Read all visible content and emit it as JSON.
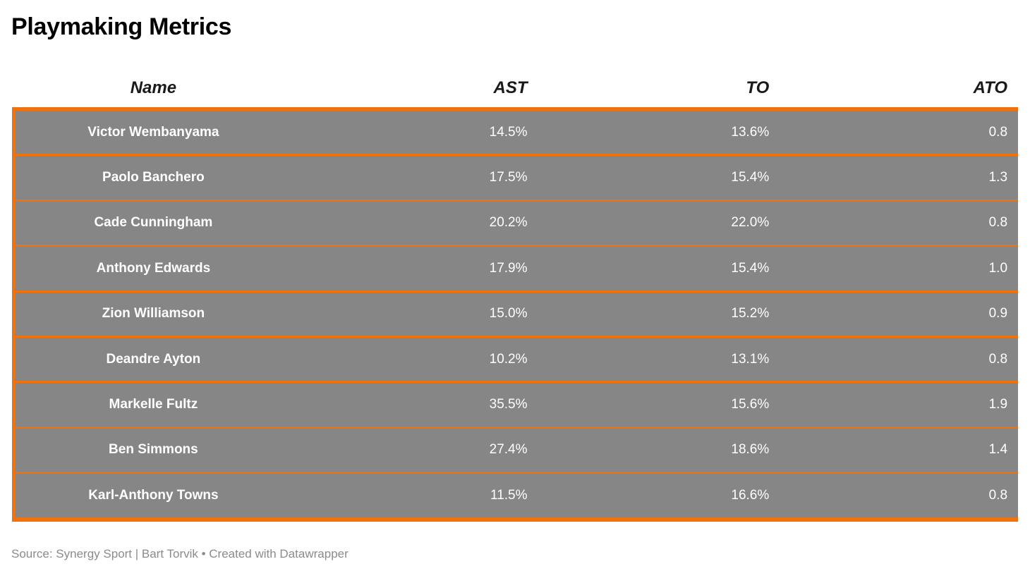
{
  "page": {
    "title": "Playmaking Metrics"
  },
  "colors": {
    "accent_orange": "#F0720C",
    "row_gray": "#868686",
    "row_text_white": "#FFFFFF",
    "header_text_black": "#1A1A1A",
    "footer_gray": "#8B8B8B"
  },
  "table": {
    "headers": {
      "name": "Name",
      "ast": "AST",
      "to": "TO",
      "ato": "ATO"
    },
    "rows": [
      {
        "name": "Victor Wembanyama",
        "ast": "14.5%",
        "to": "13.6%",
        "ato": "0.8"
      },
      {
        "name": "Paolo Banchero",
        "ast": "17.5%",
        "to": "15.4%",
        "ato": "1.3"
      },
      {
        "name": "Cade Cunningham",
        "ast": "20.2%",
        "to": "22.0%",
        "ato": "0.8"
      },
      {
        "name": "Anthony Edwards",
        "ast": "17.9%",
        "to": "15.4%",
        "ato": "1.0"
      },
      {
        "name": "Zion Williamson",
        "ast": "15.0%",
        "to": "15.2%",
        "ato": "0.9"
      },
      {
        "name": "Deandre Ayton",
        "ast": "10.2%",
        "to": "13.1%",
        "ato": "0.8"
      },
      {
        "name": "Markelle Fultz",
        "ast": "35.5%",
        "to": "15.6%",
        "ato": "1.9"
      },
      {
        "name": "Ben Simmons",
        "ast": "27.4%",
        "to": "18.6%",
        "ato": "1.4"
      },
      {
        "name": "Karl-Anthony Towns",
        "ast": "11.5%",
        "to": "16.6%",
        "ato": "0.8"
      }
    ]
  },
  "footer": {
    "source": "Source: Synergy Sport | Bart Torvik • Created with Datawrapper"
  },
  "chart_data": {
    "type": "table",
    "title": "Playmaking Metrics",
    "columns": [
      "Name",
      "AST",
      "TO",
      "ATO"
    ],
    "categories": [
      "Victor Wembanyama",
      "Paolo Banchero",
      "Cade Cunningham",
      "Anthony Edwards",
      "Zion Williamson",
      "Deandre Ayton",
      "Markelle Fultz",
      "Ben Simmons",
      "Karl-Anthony Towns"
    ],
    "series": [
      {
        "name": "AST (%)",
        "values": [
          14.5,
          17.5,
          20.2,
          17.9,
          15.0,
          10.2,
          35.5,
          27.4,
          11.5
        ]
      },
      {
        "name": "TO (%)",
        "values": [
          13.6,
          15.4,
          22.0,
          15.4,
          15.2,
          13.1,
          15.6,
          18.6,
          16.6
        ]
      },
      {
        "name": "ATO",
        "values": [
          0.8,
          1.3,
          0.8,
          1.0,
          0.9,
          0.8,
          1.9,
          1.4,
          0.8
        ]
      }
    ],
    "rows": [
      [
        "Victor Wembanyama",
        "14.5%",
        "13.6%",
        "0.8"
      ],
      [
        "Paolo Banchero",
        "17.5%",
        "15.4%",
        "1.3"
      ],
      [
        "Cade Cunningham",
        "20.2%",
        "22.0%",
        "0.8"
      ],
      [
        "Anthony Edwards",
        "17.9%",
        "15.4%",
        "1.0"
      ],
      [
        "Zion Williamson",
        "15.0%",
        "15.2%",
        "0.9"
      ],
      [
        "Deandre Ayton",
        "10.2%",
        "13.1%",
        "0.8"
      ],
      [
        "Markelle Fultz",
        "35.5%",
        "15.6%",
        "1.9"
      ],
      [
        "Ben Simmons",
        "27.4%",
        "18.6%",
        "1.4"
      ],
      [
        "Karl-Anthony Towns",
        "11.5%",
        "16.6%",
        "0.8"
      ]
    ],
    "layout": {
      "row_highlight_color": "#868686",
      "border_color": "#F0720C",
      "grid": "horizontal-orange-separators",
      "legend": "none"
    }
  }
}
